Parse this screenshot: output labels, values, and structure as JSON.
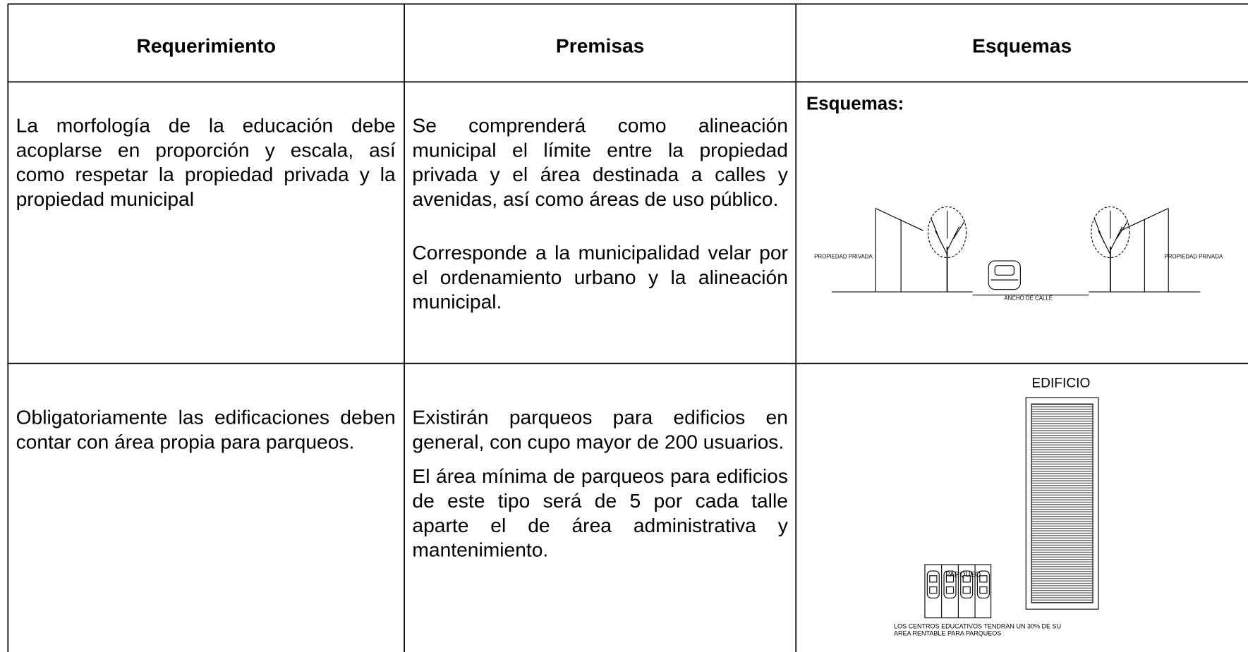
{
  "table": {
    "header": [
      "Requerimiento",
      "Premisas",
      "Esquemas"
    ],
    "rows": [
      {
        "requerimiento": "La morfología de la educación debe acoplarse en proporción y escala, así como respetar la propiedad privada y la propiedad municipal",
        "premisas": [
          "Se comprenderá como alineación municipal el límite entre la propiedad privada y el área destinada a calles y avenidas, así como áreas de uso público.",
          "Corresponde a la municipalidad velar por el ordenamiento urbano y la alineación municipal."
        ],
        "esquema": {
          "title": "Esquemas:",
          "labels": [
            "PROPIEDAD PRIVADA",
            "PROPIEDAD PRIVADA",
            "ANCHO DE CALLE"
          ]
        }
      },
      {
        "requerimiento": "Obligatoriamente las edificaciones deben contar con área propia para parqueos.",
        "premisas": [
          "Existirán parqueos para edificios en general, con cupo mayor de 200 usuarios.",
          "El área mínima de parqueos para edificios de este tipo será de 5 por cada talle aparte el de área administrativa y mantenimiento."
        ],
        "esquema": {
          "labels": [
            "EDIFICIO",
            "PARQUEO",
            "LOS CENTROS EDUCATIVOS TENDRAN UN 30% DE SU",
            "AREA RENTABLE PARA PARQUEOS"
          ]
        }
      }
    ]
  }
}
